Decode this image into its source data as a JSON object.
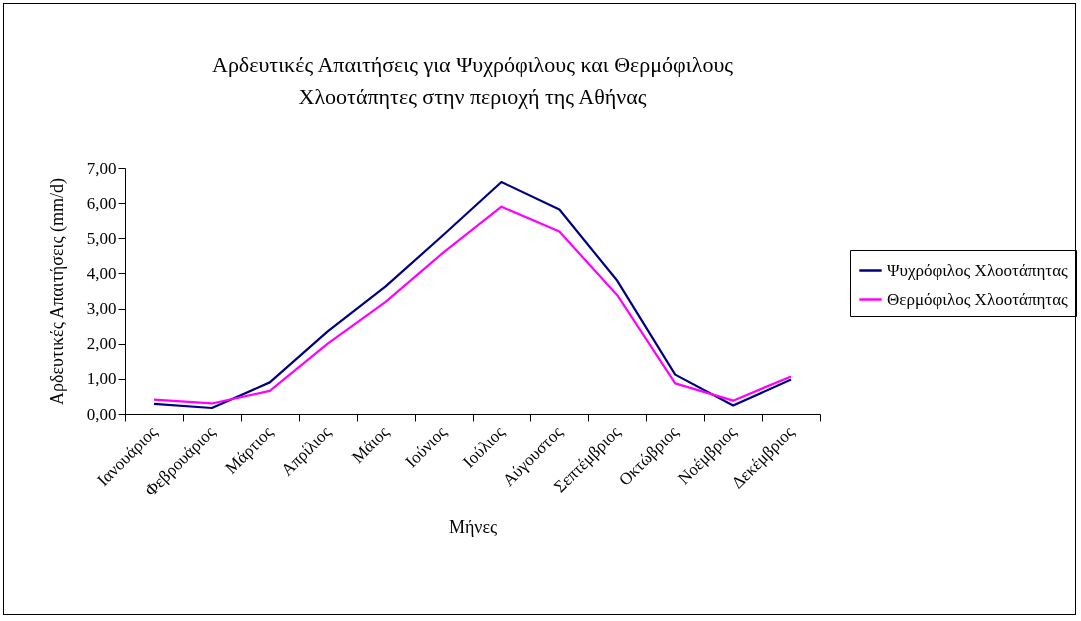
{
  "chart_data": {
    "type": "line",
    "title": "Αρδευτικές Απαιτήσεις για Ψυχρόφιλους και Θερμόφιλους\nΧλοοτάπητες στην περιοχή της Αθήνας",
    "xlabel": "Μήνες",
    "ylabel": "Αρδευτικές Απαιτήσεις (mm/d)",
    "categories": [
      "Ιανουάριος",
      "Φεβρουάριος",
      "Μάρτιος",
      "Απρίλιος",
      "Μάιος",
      "Ιούνιος",
      "Ιούλιος",
      "Αύγουστος",
      "Σεπτέμβριος",
      "Οκτώβριος",
      "Νοέμβριος",
      "Δεκέμβριος"
    ],
    "series": [
      {
        "name": "Ψυχρόφιλος Χλοοτάπητας",
        "color": "#000080",
        "values": [
          0.29,
          0.17,
          0.9,
          2.35,
          3.63,
          5.1,
          6.6,
          5.82,
          3.79,
          1.12,
          0.24,
          0.98
        ]
      },
      {
        "name": "Θερμόφιλος Χλοοτάπητας",
        "color": "#ff00ff",
        "values": [
          0.41,
          0.3,
          0.66,
          2.0,
          3.19,
          4.6,
          5.9,
          5.19,
          3.38,
          0.87,
          0.38,
          1.07
        ]
      }
    ],
    "ylim": [
      0,
      7
    ],
    "yticks": [
      {
        "value": 0,
        "label": "0,00"
      },
      {
        "value": 1,
        "label": "1,00"
      },
      {
        "value": 2,
        "label": "2,00"
      },
      {
        "value": 3,
        "label": "3,00"
      },
      {
        "value": 4,
        "label": "4,00"
      },
      {
        "value": 5,
        "label": "5,00"
      },
      {
        "value": 6,
        "label": "6,00"
      },
      {
        "value": 7,
        "label": "7,00"
      }
    ],
    "legend": "right"
  }
}
